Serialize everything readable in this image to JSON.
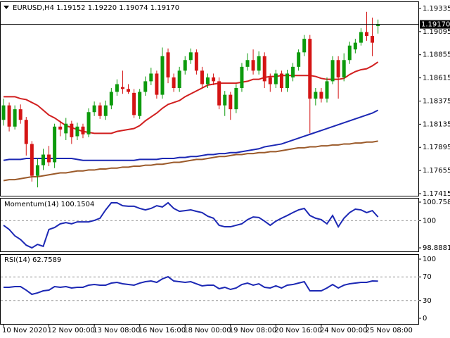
{
  "chart_data": [
    {
      "type": "candlestick",
      "title": "EURUSD,H4  1.19152 1.19220 1.19074 1.19170",
      "categories": [
        "10 Nov 2020",
        null,
        null,
        null,
        null,
        null,
        null,
        null,
        "12 Nov 00:00",
        null,
        null,
        null,
        null,
        null,
        null,
        null,
        "13 Nov 08:00",
        null,
        null,
        null,
        null,
        null,
        null,
        null,
        "16 Nov 16:00",
        null,
        null,
        null,
        null,
        null,
        null,
        null,
        "18 Nov 00:00",
        null,
        null,
        null,
        null,
        null,
        null,
        null,
        "19 Nov 08:00",
        null,
        null,
        null,
        null,
        null,
        null,
        null,
        "20 Nov 16:00",
        null,
        null,
        null,
        null,
        null,
        null,
        null,
        "24 Nov 00:00",
        null,
        null,
        null,
        null,
        null,
        null,
        null,
        "25 Nov 08:00",
        null,
        null
      ],
      "open": [
        1.1818,
        1.1833,
        1.1811,
        1.1829,
        1.1818,
        1.1793,
        1.176,
        1.1771,
        1.1782,
        1.1774,
        1.1811,
        1.1804,
        1.1814,
        1.1801,
        1.1811,
        1.1803,
        1.1826,
        1.1833,
        1.1822,
        1.1833,
        1.1847,
        1.1852,
        1.185,
        1.1846,
        1.1822,
        1.1847,
        1.1858,
        1.1866,
        1.1844,
        1.1888,
        1.1862,
        1.1851,
        1.1869,
        1.188,
        1.1888,
        1.1869,
        1.1855,
        1.1862,
        1.1858,
        1.1833,
        1.1844,
        1.1829,
        1.1851,
        1.1873,
        1.188,
        1.1869,
        1.1884,
        1.1862,
        1.1855,
        1.1866,
        1.1851,
        1.1862,
        1.1873,
        1.1888,
        1.1902,
        1.184,
        1.1847,
        1.184,
        1.1858,
        1.188,
        1.1862,
        1.188,
        1.1891,
        1.1898,
        1.1909,
        1.1905,
        1.19152
      ],
      "high": [
        1.184,
        1.1836,
        1.1833,
        1.1834,
        1.1821,
        1.1796,
        1.1778,
        1.1788,
        1.1791,
        1.1814,
        1.1817,
        1.182,
        1.1817,
        1.1815,
        1.1814,
        1.183,
        1.1837,
        1.1836,
        1.1838,
        1.1851,
        1.186,
        1.1869,
        1.1855,
        1.185,
        1.185,
        1.1863,
        1.1872,
        1.1869,
        1.1893,
        1.1892,
        1.1866,
        1.1873,
        1.1884,
        1.1892,
        1.1891,
        1.1873,
        1.1866,
        1.1866,
        1.1862,
        1.1848,
        1.1847,
        1.1855,
        1.1877,
        1.1887,
        1.1891,
        1.1889,
        1.1888,
        1.1866,
        1.187,
        1.1869,
        1.187,
        1.1877,
        1.1891,
        1.1906,
        1.1906,
        1.1851,
        1.1851,
        1.1862,
        1.1884,
        1.1884,
        1.1887,
        1.1899,
        1.1902,
        1.1913,
        1.193,
        1.1924,
        1.1922
      ],
      "low": [
        1.1812,
        1.1806,
        1.1808,
        1.1814,
        1.1781,
        1.1754,
        1.1748,
        1.1766,
        1.177,
        1.1768,
        1.1801,
        1.1797,
        1.1793,
        1.1797,
        1.1799,
        1.18,
        1.1822,
        1.1819,
        1.1818,
        1.1829,
        1.1843,
        1.1845,
        1.1845,
        1.182,
        1.1819,
        1.1843,
        1.1854,
        1.184,
        1.184,
        1.1856,
        1.1847,
        1.1847,
        1.1865,
        1.1876,
        1.1865,
        1.1851,
        1.1851,
        1.1854,
        1.1829,
        1.1822,
        1.1818,
        1.1825,
        1.1847,
        1.1869,
        1.1865,
        1.1865,
        1.1851,
        1.1847,
        1.1851,
        1.1847,
        1.1847,
        1.1858,
        1.1869,
        1.1884,
        1.1804,
        1.1833,
        1.1836,
        1.1836,
        1.1855,
        1.184,
        1.1858,
        1.1876,
        1.1887,
        1.1895,
        1.19,
        1.1884,
        1.19074
      ],
      "close": [
        1.1833,
        1.1811,
        1.1829,
        1.1818,
        1.1793,
        1.176,
        1.1771,
        1.1782,
        1.1774,
        1.1811,
        1.1808,
        1.1814,
        1.18,
        1.1811,
        1.1803,
        1.1826,
        1.1833,
        1.1822,
        1.1833,
        1.1847,
        1.1855,
        1.185,
        1.1847,
        1.1823,
        1.1847,
        1.1858,
        1.1866,
        1.1844,
        1.1884,
        1.1862,
        1.1851,
        1.1869,
        1.188,
        1.1888,
        1.1869,
        1.1855,
        1.1862,
        1.1858,
        1.1833,
        1.1844,
        1.1829,
        1.1851,
        1.1873,
        1.188,
        1.1869,
        1.1884,
        1.1858,
        1.1855,
        1.1866,
        1.1851,
        1.1866,
        1.1873,
        1.1888,
        1.1902,
        1.184,
        1.1847,
        1.184,
        1.1858,
        1.188,
        1.1862,
        1.188,
        1.1895,
        1.1898,
        1.1909,
        1.1905,
        1.1898,
        1.1917
      ],
      "up_color": "#0c9a0c",
      "down_color": "#d41414",
      "lines": [
        {
          "color": "#d11f1f",
          "values": [
            1.1842,
            1.1842,
            1.1842,
            1.184,
            1.1839,
            1.1836,
            1.1833,
            1.1828,
            1.1823,
            1.182,
            1.1816,
            1.1812,
            1.181,
            1.1808,
            1.1806,
            1.1805,
            1.1804,
            1.1804,
            1.1804,
            1.1804,
            1.1806,
            1.1807,
            1.1808,
            1.1809,
            1.1812,
            1.1817,
            1.1821,
            1.1825,
            1.183,
            1.1834,
            1.1836,
            1.1838,
            1.1842,
            1.1845,
            1.1848,
            1.1851,
            1.1854,
            1.1855,
            1.1856,
            1.1856,
            1.1856,
            1.1856,
            1.1857,
            1.1858,
            1.186,
            1.186,
            1.1862,
            1.1863,
            1.1863,
            1.1864,
            1.1864,
            1.1864,
            1.1864,
            1.1864,
            1.1864,
            1.1863,
            1.1861,
            1.186,
            1.186,
            1.186,
            1.1861,
            1.1865,
            1.1868,
            1.187,
            1.1871,
            1.1874,
            1.1878
          ]
        },
        {
          "color": "#1c28b4",
          "values": [
            1.1776,
            1.1777,
            1.1777,
            1.1777,
            1.1778,
            1.1778,
            1.1778,
            1.1778,
            1.1778,
            1.1778,
            1.1778,
            1.1778,
            1.1778,
            1.1777,
            1.1776,
            1.1776,
            1.1776,
            1.1776,
            1.1776,
            1.1776,
            1.1776,
            1.1776,
            1.1776,
            1.1776,
            1.1777,
            1.1777,
            1.1777,
            1.1777,
            1.1778,
            1.1778,
            1.1778,
            1.1779,
            1.1779,
            1.178,
            1.178,
            1.1781,
            1.1782,
            1.1782,
            1.1783,
            1.1783,
            1.1784,
            1.1784,
            1.1785,
            1.1786,
            1.1787,
            1.1788,
            1.179,
            1.1791,
            1.1792,
            1.1793,
            1.1795,
            1.1797,
            1.1799,
            1.1801,
            1.1803,
            1.1805,
            1.1807,
            1.1809,
            1.1811,
            1.1813,
            1.1815,
            1.1817,
            1.1819,
            1.1821,
            1.1823,
            1.1825,
            1.1828
          ]
        },
        {
          "color": "#9b5a2a",
          "values": [
            1.1755,
            1.1756,
            1.1756,
            1.1757,
            1.1758,
            1.1759,
            1.1759,
            1.176,
            1.1761,
            1.1762,
            1.1763,
            1.1763,
            1.1764,
            1.1765,
            1.1765,
            1.1766,
            1.1766,
            1.1767,
            1.1767,
            1.1768,
            1.1768,
            1.1769,
            1.1769,
            1.177,
            1.177,
            1.1771,
            1.1771,
            1.1772,
            1.1772,
            1.1773,
            1.1774,
            1.1774,
            1.1775,
            1.1776,
            1.1777,
            1.1777,
            1.1778,
            1.1779,
            1.178,
            1.178,
            1.1781,
            1.1782,
            1.1782,
            1.1783,
            1.1783,
            1.1784,
            1.1784,
            1.1785,
            1.1785,
            1.1786,
            1.1787,
            1.1788,
            1.1789,
            1.1789,
            1.179,
            1.179,
            1.1791,
            1.1791,
            1.1792,
            1.1792,
            1.1793,
            1.1793,
            1.1794,
            1.1794,
            1.1795,
            1.1795,
            1.1796
          ]
        }
      ],
      "price_line": {
        "value": 1.1917,
        "label": "1.19170"
      },
      "ylim": [
        1.17393,
        1.19408
      ],
      "yticks": [
        1.19335,
        1.19095,
        1.18855,
        1.18615,
        1.18375,
        1.18135,
        1.17895,
        1.17655,
        1.17415
      ]
    },
    {
      "type": "line",
      "title": "Momentum(14) 100.1504",
      "color": "#1c28b4",
      "values": [
        99.81,
        99.64,
        99.38,
        99.23,
        99.0,
        98.89,
        99.03,
        98.95,
        99.64,
        99.72,
        99.87,
        99.92,
        99.87,
        99.95,
        99.95,
        99.95,
        100.01,
        100.1,
        100.44,
        100.73,
        100.73,
        100.61,
        100.59,
        100.59,
        100.5,
        100.44,
        100.5,
        100.61,
        100.56,
        100.73,
        100.5,
        100.38,
        100.41,
        100.44,
        100.38,
        100.33,
        100.18,
        100.1,
        99.81,
        99.75,
        99.75,
        99.81,
        99.87,
        100.04,
        100.15,
        100.13,
        99.98,
        99.81,
        99.98,
        100.1,
        100.21,
        100.33,
        100.44,
        100.5,
        100.21,
        100.1,
        100.04,
        99.87,
        100.21,
        99.75,
        100.1,
        100.33,
        100.47,
        100.44,
        100.33,
        100.41,
        100.1504
      ],
      "ylim": [
        98.8881,
        100.7584
      ],
      "yticks": [
        100.7584,
        100,
        98.8881
      ]
    },
    {
      "type": "line",
      "title": "RSI(14) 62.7589",
      "color": "#1c28b4",
      "values": [
        52.4,
        52.4,
        53.6,
        53.6,
        47.6,
        40.5,
        42.9,
        46.4,
        47.6,
        53.6,
        52.4,
        53.6,
        51.2,
        52.4,
        52.4,
        56.0,
        57.1,
        56.0,
        56.0,
        59.5,
        60.7,
        58.3,
        57.1,
        56.0,
        59.5,
        61.9,
        63.1,
        60.7,
        66.7,
        70.2,
        63.1,
        61.9,
        60.7,
        61.9,
        58.3,
        54.8,
        56.0,
        56.0,
        50.0,
        52.4,
        48.8,
        51.2,
        57.1,
        59.5,
        56.0,
        58.3,
        52.4,
        51.2,
        54.8,
        51.2,
        56.0,
        57.1,
        59.5,
        61.9,
        46.4,
        46.4,
        46.4,
        51.2,
        57.1,
        51.2,
        56.0,
        58.3,
        59.5,
        60.7,
        60.7,
        63.1,
        62.7589
      ],
      "ylim": [
        0,
        100
      ],
      "yticks": [
        100,
        70,
        30,
        0
      ]
    }
  ]
}
